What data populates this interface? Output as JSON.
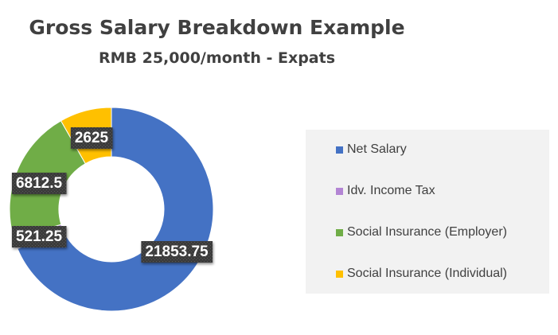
{
  "chart_data": {
    "type": "pie",
    "donut": true,
    "title": "Gross Salary Breakdown Example",
    "subtitle": "RMB 25,000/month - Expats",
    "categories": [
      "Net Salary",
      "Idv. Income Tax",
      "Social Insurance (Employer)",
      "Social Insurance (Individual)"
    ],
    "values": [
      21853.75,
      521.25,
      6812.5,
      2625
    ],
    "data_labels": [
      "21853.75",
      "521.25",
      "6812.5",
      "2625"
    ],
    "colors": [
      "#4472c4",
      "#b385d4",
      "#70ad47",
      "#ffc000"
    ],
    "legend_position": "right"
  }
}
